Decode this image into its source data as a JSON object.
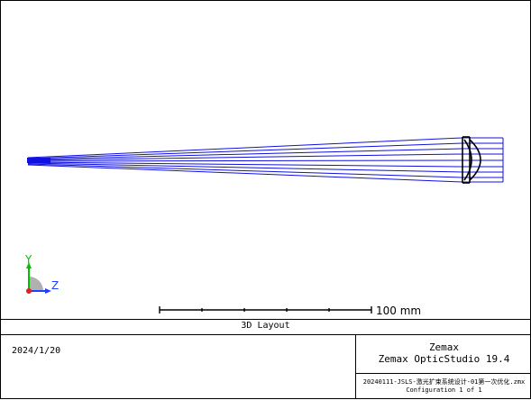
{
  "plot": {
    "axis_y_label": "Y",
    "axis_z_label": "Z",
    "scale_label": "100 mm",
    "colors": {
      "rays": "#1010e0",
      "lens": "#000000",
      "axis_y": "#00c000",
      "axis_z": "#2040ff",
      "axis_x": "#e02020"
    }
  },
  "title_block": {
    "view_title": "3D Layout",
    "date": "2024/1/20",
    "company": "Zemax",
    "product": "Zemax OpticStudio 19.4",
    "filename": "20240111-JSLS-激光扩束系统设计-01第一次优化.zmx",
    "configuration": "Configuration 1 of 1"
  }
}
